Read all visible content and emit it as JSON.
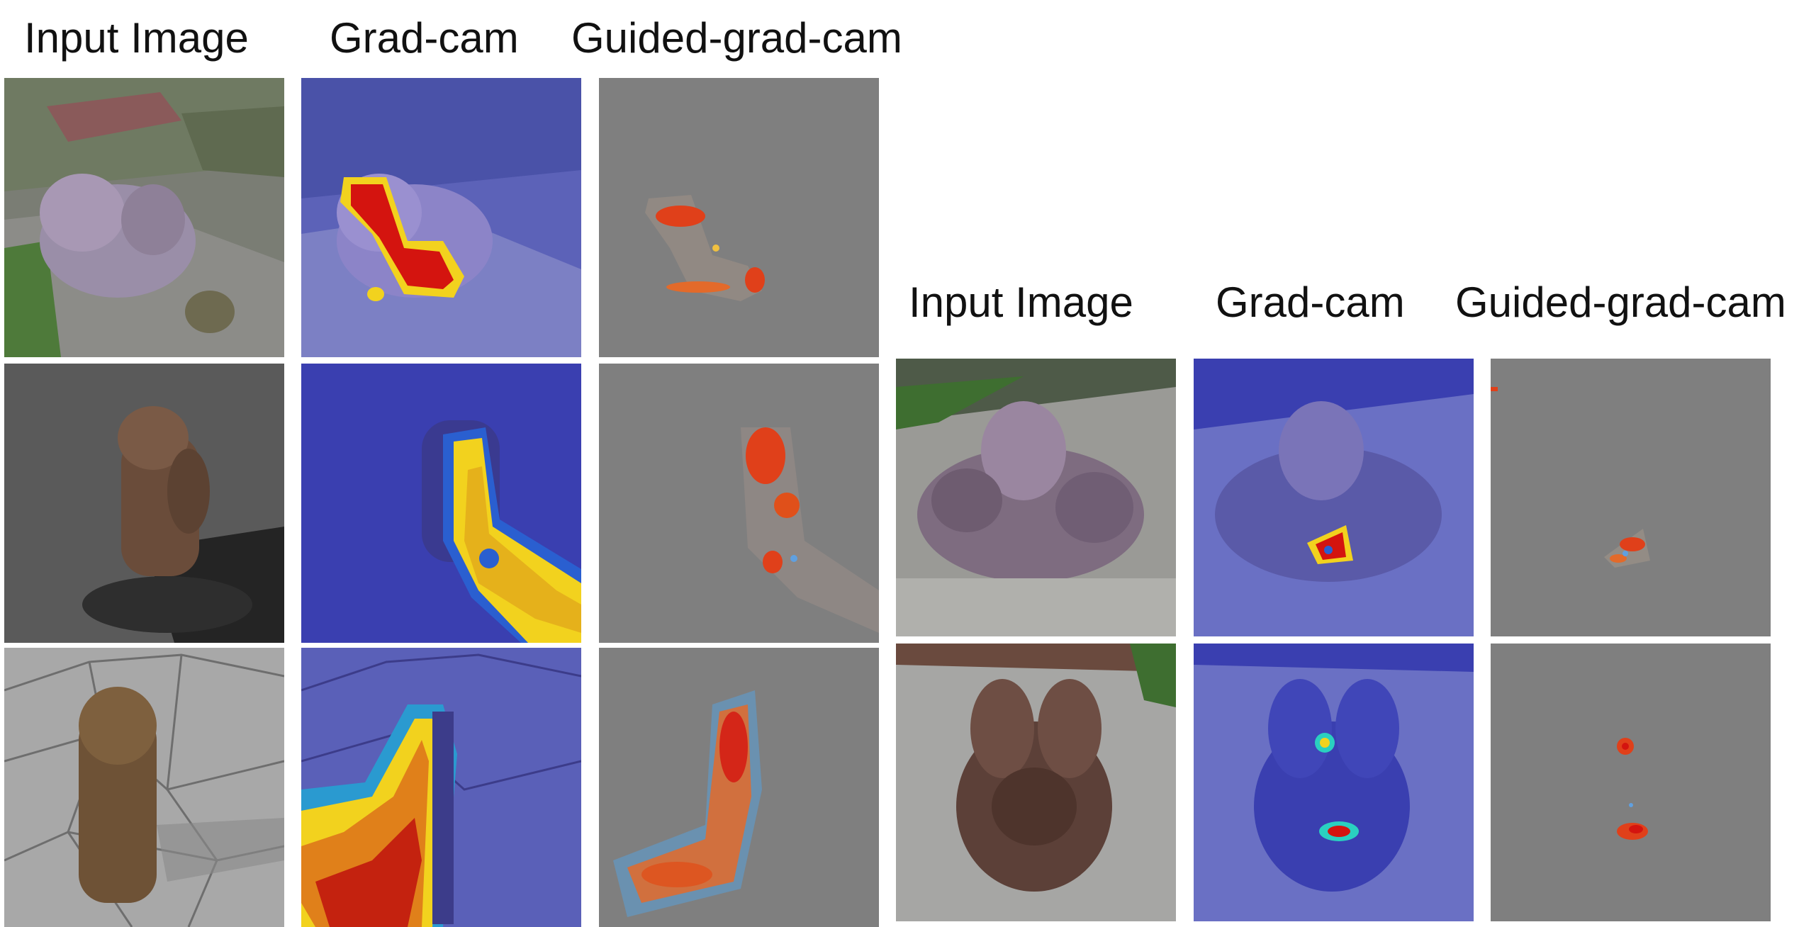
{
  "left_panel": {
    "headers": [
      "Input Image",
      "Grad-cam",
      "Guided-grad-cam"
    ]
  },
  "right_panel": {
    "headers": [
      "Input Image",
      "Grad-cam",
      "Guided-grad-cam"
    ]
  },
  "colors": {
    "background": "#ffffff",
    "guided_background": "#7f7f7f",
    "heat_low": "#3a3fb0",
    "heat_mid": "#f2d21e",
    "heat_high": "#d4140f"
  }
}
